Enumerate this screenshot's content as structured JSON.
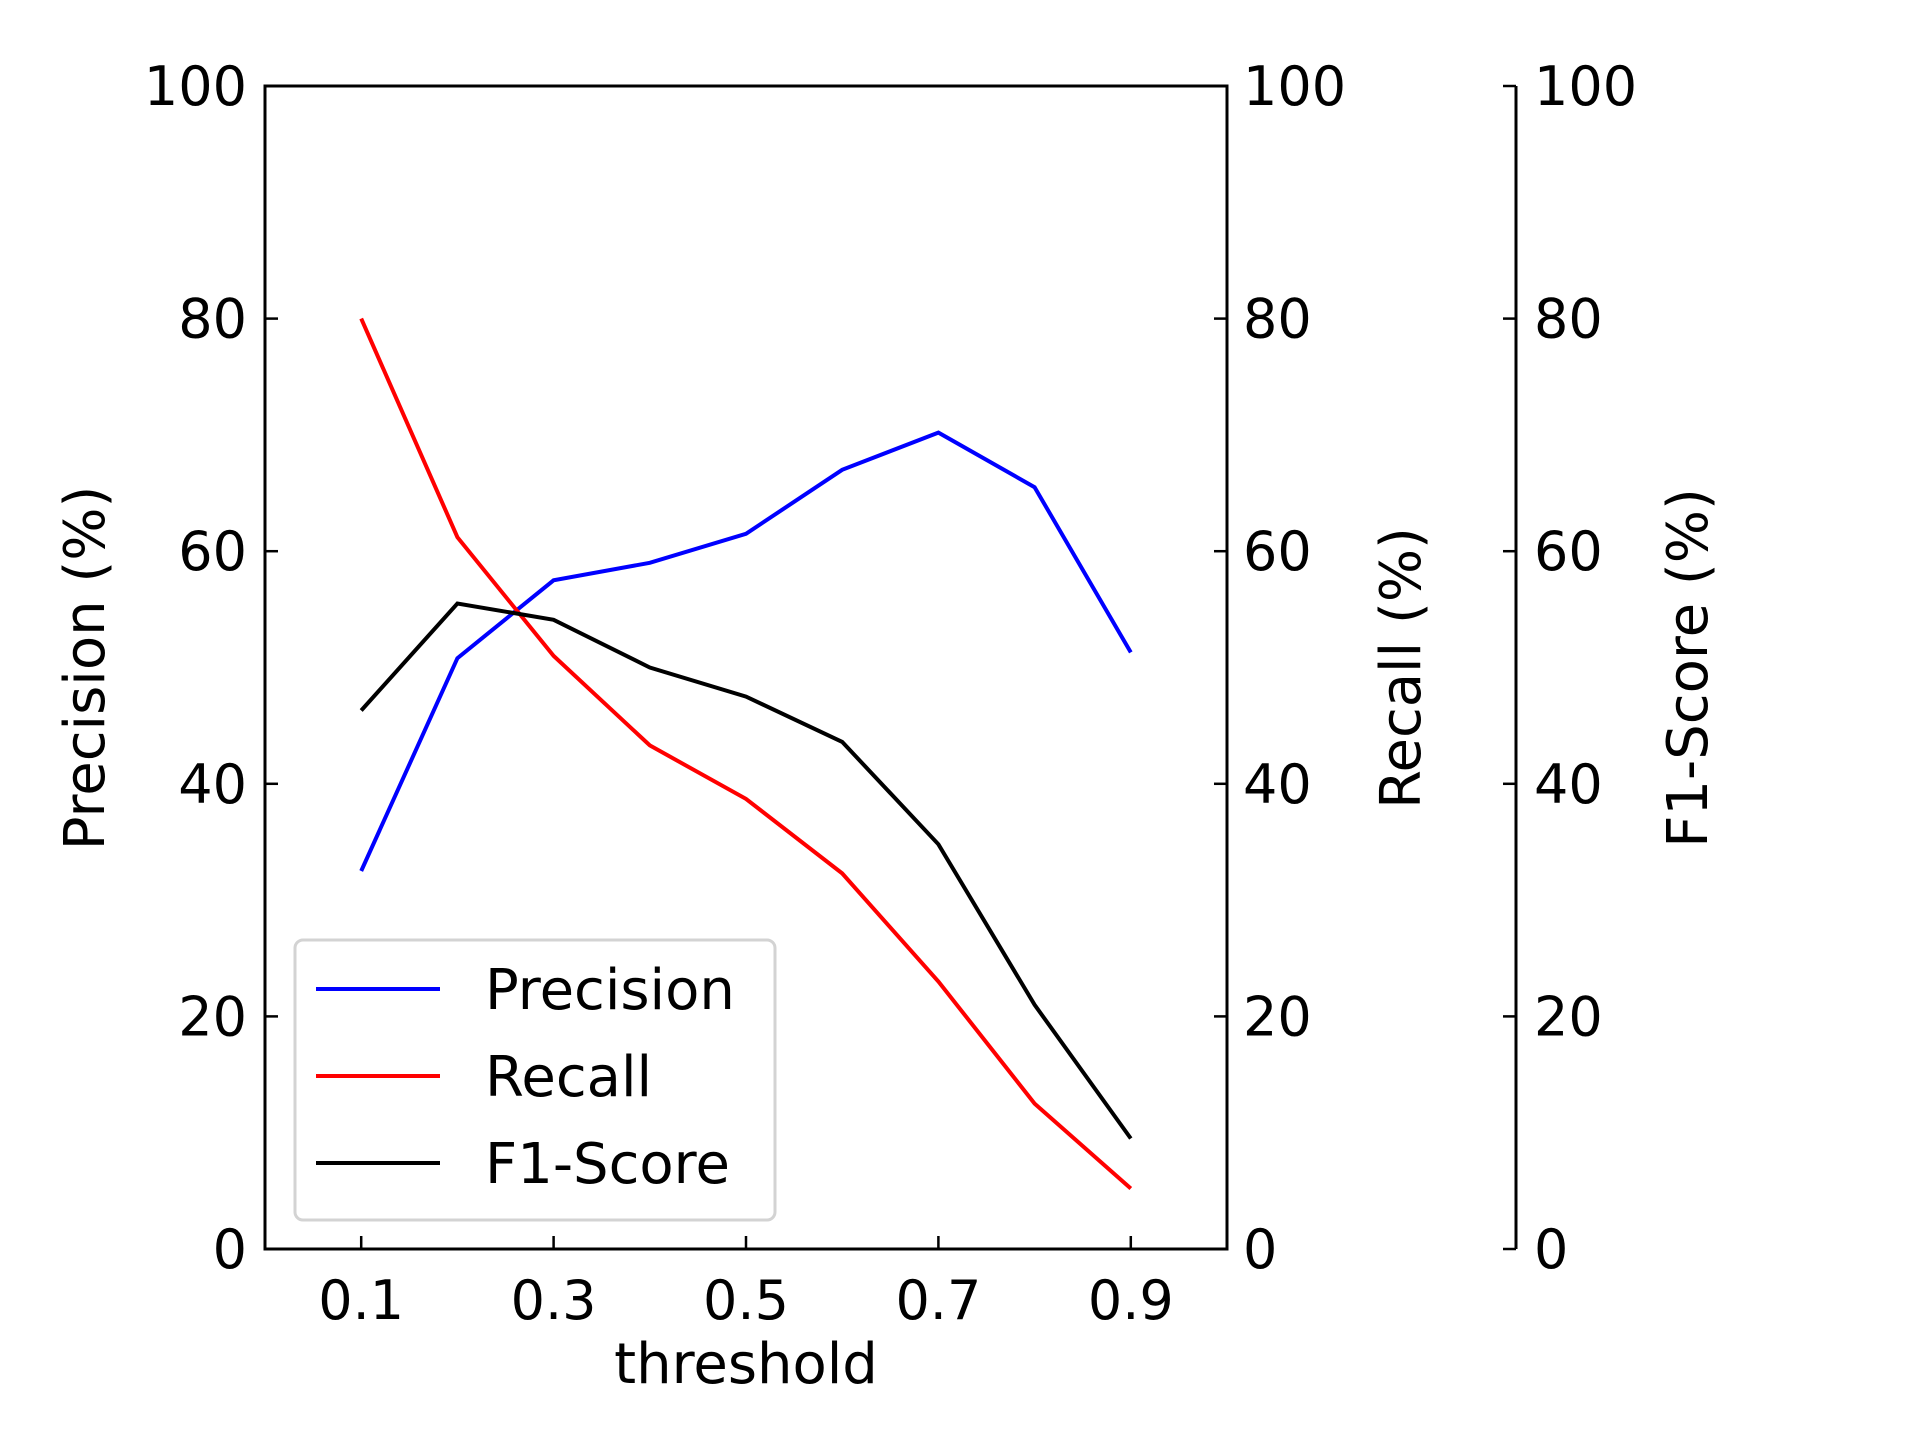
{
  "chart_data": {
    "type": "line",
    "x": [
      0.1,
      0.2,
      0.3,
      0.4,
      0.5,
      0.6,
      0.7,
      0.8,
      0.9
    ],
    "xlabel": "threshold",
    "xlim": [
      0.0,
      1.0
    ],
    "xticks": [
      "0.1",
      "0.3",
      "0.5",
      "0.7",
      "0.9"
    ],
    "xtick_values": [
      0.1,
      0.3,
      0.5,
      0.7,
      0.9
    ],
    "ylabels": {
      "left": "Precision (%)",
      "right": "Recall (%)",
      "far_right": "F1-Score (%)"
    },
    "ylim": [
      0,
      100
    ],
    "yticks": [
      "0",
      "20",
      "40",
      "60",
      "80",
      "100"
    ],
    "ytick_values": [
      0,
      20,
      40,
      60,
      80,
      100
    ],
    "grid": false,
    "legend_position": "bottom-left",
    "series": [
      {
        "name": "Precision",
        "color": "#0000ff",
        "values": [
          32.5,
          50.8,
          57.5,
          59.0,
          61.5,
          67.0,
          70.2,
          65.5,
          51.3
        ]
      },
      {
        "name": "Recall",
        "color": "#ff0000",
        "values": [
          80.0,
          61.2,
          51.0,
          43.3,
          38.7,
          32.3,
          23.0,
          12.5,
          5.2
        ]
      },
      {
        "name": "F1-Score",
        "color": "#000000",
        "values": [
          46.3,
          55.5,
          54.1,
          50.0,
          47.5,
          43.6,
          34.8,
          21.0,
          9.5
        ]
      }
    ]
  }
}
